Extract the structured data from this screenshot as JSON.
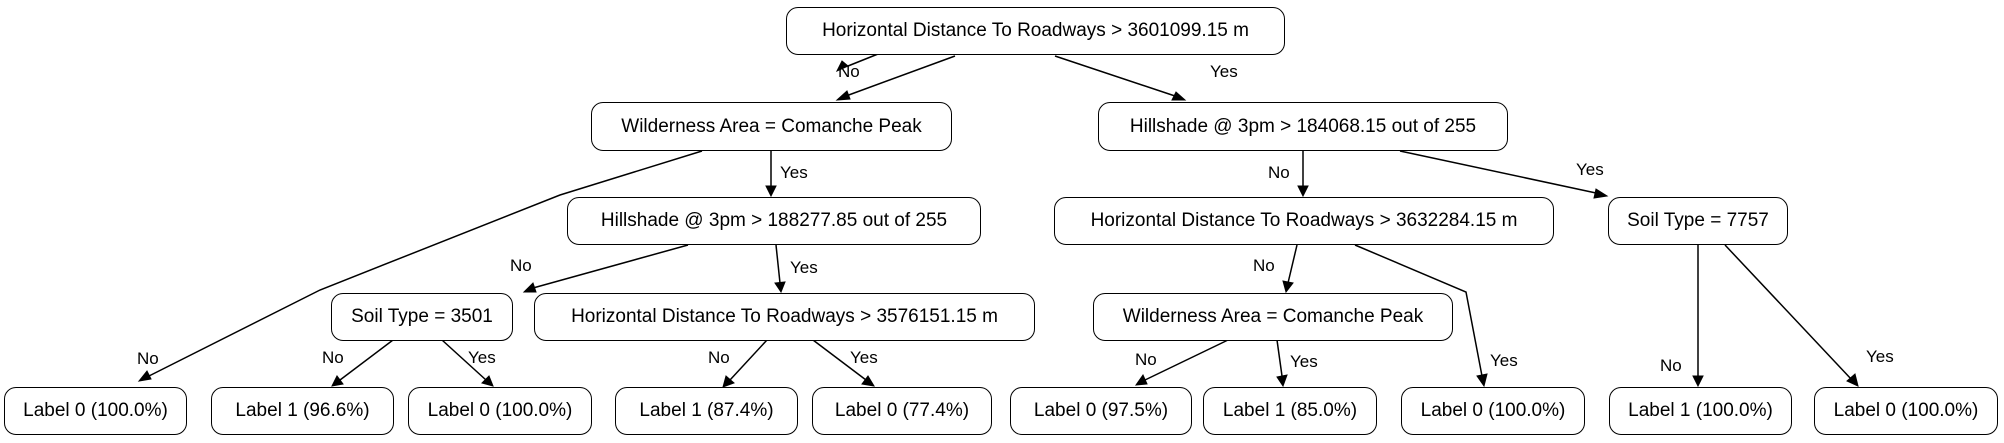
{
  "nodes": {
    "root": "Horizontal Distance To Roadways > 3601099.15 m",
    "wild1": "Wilderness Area = Comanche Peak",
    "hill1": "Hillshade @ 3pm > 184068.15 out of 255",
    "hill2": "Hillshade @ 3pm > 188277.85 out of 255",
    "horiz2": "Horizontal Distance To Roadways > 3632284.15 m",
    "soil7757": "Soil Type = 7757",
    "soil3501": "Soil Type = 3501",
    "horiz3": "Horizontal Distance To Roadways > 3576151.15 m",
    "wild2": "Wilderness Area = Comanche Peak",
    "leaf1": "Label 0 (100.0%)",
    "leaf2": "Label 1 (96.6%)",
    "leaf3": "Label 0 (100.0%)",
    "leaf4": "Label 1 (87.4%)",
    "leaf5": "Label 0 (77.4%)",
    "leaf6": "Label 0 (97.5%)",
    "leaf7": "Label 1 (85.0%)",
    "leaf8": "Label 0 (100.0%)",
    "leaf9": "Label 1 (100.0%)",
    "leaf10": "Label 0 (100.0%)"
  },
  "edges": {
    "root_no": "No",
    "root_yes": "Yes",
    "wild1_no": "No",
    "wild1_yes": "Yes",
    "hill1_no": "No",
    "hill1_yes": "Yes",
    "hill2_no": "No",
    "hill2_yes": "Yes",
    "horiz2_no": "No",
    "horiz2_yes": "Yes",
    "soil7757_no": "No",
    "soil7757_yes": "Yes",
    "soil3501_no": "No",
    "soil3501_yes": "Yes",
    "horiz3_no": "No",
    "horiz3_yes": "Yes",
    "wild2_no": "No",
    "wild2_yes": "Yes"
  }
}
